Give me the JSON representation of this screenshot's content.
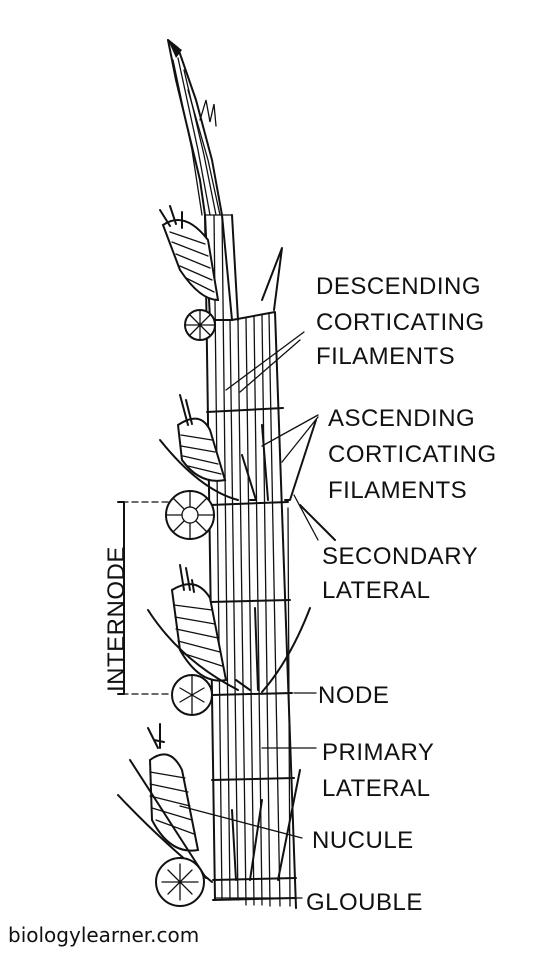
{
  "labels": {
    "descending": [
      "DESCENDING",
      "CORTICATING",
      "FILAMENTS"
    ],
    "ascending": [
      "ASCENDING",
      "CORTICATING",
      "FILAMENTS"
    ],
    "secondary": [
      "SECONDARY",
      "LATERAL"
    ],
    "internode": "INTERNODE",
    "node": "NODE",
    "primary": [
      "PRIMARY",
      "LATERAL"
    ],
    "nucule": "NUCULE",
    "globule": "GLOUBLE"
  },
  "watermark": "biologylearner.com"
}
